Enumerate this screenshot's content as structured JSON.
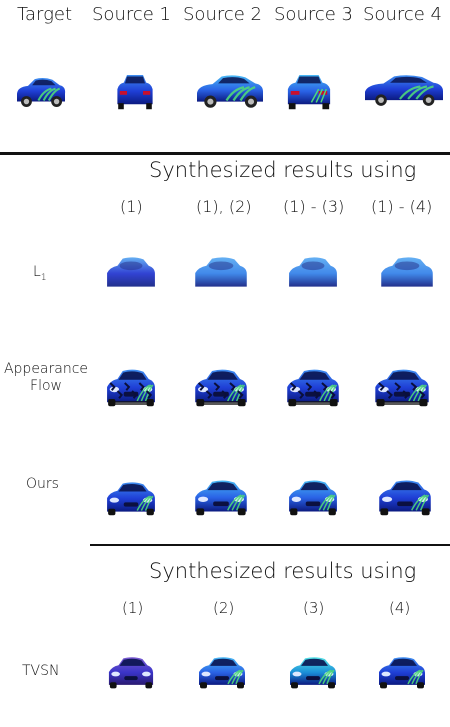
{
  "header": {
    "target": "Target",
    "sources": [
      "Source 1",
      "Source 2",
      "Source 3",
      "Source 4"
    ]
  },
  "section_top": {
    "title": "Synthesized results using",
    "columns": [
      "(1)",
      "(1), (2)",
      "(1) - (3)",
      "(1) - (4)"
    ],
    "rows": [
      {
        "label": "L",
        "subscript": "1"
      },
      {
        "label": "Appearance",
        "label2": "Flow"
      },
      {
        "label": "Ours"
      }
    ]
  },
  "section_bottom": {
    "title": "Synthesized results using",
    "columns": [
      "(1)",
      "(2)",
      "(3)",
      "(4)"
    ],
    "rows": [
      {
        "label": "TVSN"
      }
    ]
  },
  "colors": {
    "car_blue": "#1f3fd6",
    "car_dark": "#0b1a80",
    "car_light": "#3e8df0",
    "stripe_green": "#4fd87a",
    "rule": "#111111"
  }
}
